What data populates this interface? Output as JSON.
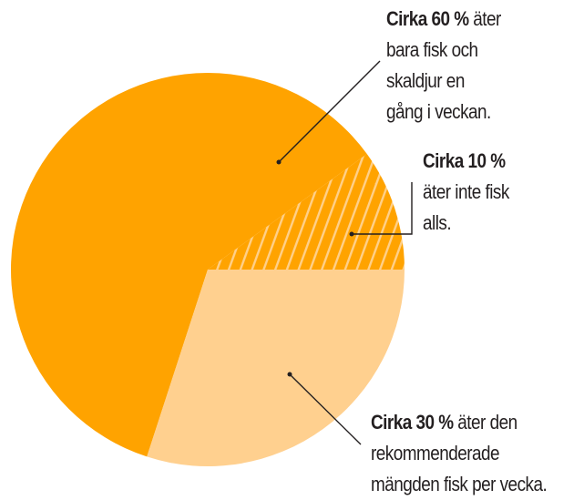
{
  "chart_data": {
    "type": "pie",
    "title": "",
    "categories": [
      "Äter bara fisk och skaldjur en gång i veckan",
      "Äter inte fisk alls",
      "Äter den rekommenderade mängden fisk per vecka"
    ],
    "values": [
      60,
      10,
      30
    ],
    "unit": "%",
    "slices": [
      {
        "key": "once_a_week",
        "value": 60,
        "color": "#ffa300",
        "pattern": "solid"
      },
      {
        "key": "no_fish",
        "value": 10,
        "color": "#ffa300",
        "pattern": "hatched",
        "hatch_color": "#ffd08a"
      },
      {
        "key": "recommended",
        "value": 30,
        "color": "#ffd08f",
        "pattern": "solid"
      }
    ],
    "legend_position": "callouts"
  },
  "labels": {
    "sixty": {
      "bold": "Cirka 60 %",
      "lines": [
        " äter",
        "bara fisk och",
        "skaldjur en",
        "gång i veckan."
      ]
    },
    "ten": {
      "bold": "Cirka 10 %",
      "lines": [
        "äter inte fisk",
        "alls."
      ]
    },
    "thirty": {
      "bold": "Cirka 30 %",
      "lines": [
        " äter den",
        "rekommenderade",
        "mängden fisk per vecka."
      ]
    }
  },
  "colors": {
    "orange": "#ffa300",
    "light": "#ffd08f",
    "hatch": "#ffd08a",
    "ink": "#231f20"
  }
}
